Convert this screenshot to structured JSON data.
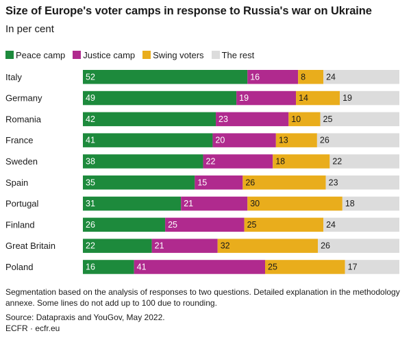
{
  "colors": {
    "peace": "#1d8a3c",
    "justice": "#b02a8e",
    "swing": "#e9ad1c",
    "rest": "#dcdcdc"
  },
  "notes": "Segmentation based on the analysis of responses to two questions. Detailed explanation in the methodology annexe. Some lines do not add up to 100 due to rounding.",
  "source": "Source: Datapraxis and YouGov, May 2022.",
  "credit": "ECFR · ecfr.eu",
  "chart_data": {
    "type": "bar",
    "orientation": "horizontal",
    "stacked": true,
    "title": "Size of Europe's voter camps in response to Russia's war on Ukraine",
    "subtitle": "In per cent",
    "legend_position": "top-left",
    "categories": [
      "Italy",
      "Germany",
      "Romania",
      "France",
      "Sweden",
      "Spain",
      "Portugal",
      "Finland",
      "Great Britain",
      "Poland"
    ],
    "series": [
      {
        "name": "Peace camp",
        "color": "#1d8a3c",
        "values": [
          52,
          49,
          42,
          41,
          38,
          35,
          31,
          26,
          22,
          16
        ]
      },
      {
        "name": "Justice camp",
        "color": "#b02a8e",
        "values": [
          16,
          19,
          23,
          20,
          22,
          15,
          21,
          25,
          21,
          41
        ]
      },
      {
        "name": "Swing voters",
        "color": "#e9ad1c",
        "values": [
          8,
          14,
          10,
          13,
          18,
          26,
          30,
          25,
          32,
          25
        ]
      },
      {
        "name": "The rest",
        "color": "#dcdcdc",
        "values": [
          24,
          19,
          25,
          26,
          22,
          23,
          18,
          24,
          26,
          17
        ]
      }
    ]
  }
}
